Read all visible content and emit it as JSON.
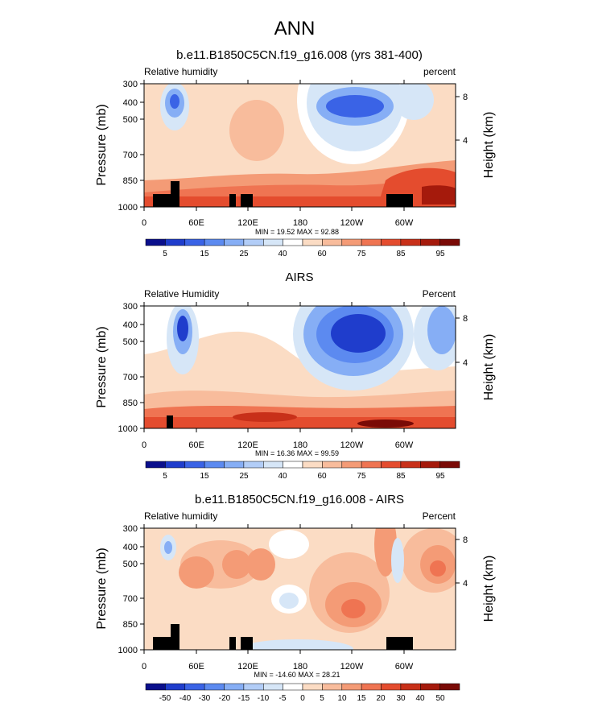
{
  "figure": {
    "title": "ANN"
  },
  "colors": [
    "#0a0f8c",
    "#1f3dcc",
    "#3a63e6",
    "#5c8af0",
    "#86aef5",
    "#b2cdf7",
    "#d6e6f7",
    "#ffffff",
    "#fbdcc4",
    "#f8bc9c",
    "#f49b76",
    "#ef7452",
    "#e44c2e",
    "#c83019",
    "#a51a0c",
    "#7a0a06"
  ],
  "chart_data": [
    {
      "type": "heatmap",
      "title": "b.e11.B1850C5CN.f19_g16.008 (yrs 381-400)",
      "left_label": "Relative humidity",
      "right_label": "percent",
      "ylabel": "Pressure (mb)",
      "ylabel_right": "Height (km)",
      "x_tick_labels": [
        "0",
        "60E",
        "120E",
        "180",
        "120W",
        "60W"
      ],
      "y_tick_labels": [
        "300",
        "400",
        "500",
        "700",
        "850",
        "1000"
      ],
      "right_tick_labels": [
        "8",
        "4"
      ],
      "xlim": [
        0,
        360
      ],
      "ylim": [
        1000,
        300
      ],
      "y_scale": "log",
      "stats": "MIN =  19.52   MAX =  92.88",
      "min": 19.52,
      "max": 92.88,
      "levels": [
        5,
        10,
        15,
        20,
        25,
        30,
        40,
        50,
        60,
        70,
        75,
        80,
        85,
        90,
        95
      ],
      "colorbar_labels": [
        "5",
        "15",
        "25",
        "40",
        "60",
        "75",
        "85",
        "95"
      ],
      "land_mask": true
    },
    {
      "type": "heatmap",
      "title": "AIRS",
      "left_label": "Relative Humidity",
      "right_label": "Percent",
      "ylabel": "Pressure (mb)",
      "ylabel_right": "Height (km)",
      "x_tick_labels": [
        "0",
        "60E",
        "120E",
        "180",
        "120W",
        "60W"
      ],
      "y_tick_labels": [
        "300",
        "400",
        "500",
        "700",
        "850",
        "1000"
      ],
      "right_tick_labels": [
        "8",
        "4"
      ],
      "xlim": [
        0,
        360
      ],
      "ylim": [
        1000,
        300
      ],
      "y_scale": "log",
      "stats": "MIN =  16.36   MAX =  99.59",
      "min": 16.36,
      "max": 99.59,
      "levels": [
        5,
        10,
        15,
        20,
        25,
        30,
        40,
        50,
        60,
        70,
        75,
        80,
        85,
        90,
        95
      ],
      "colorbar_labels": [
        "5",
        "15",
        "25",
        "40",
        "60",
        "75",
        "85",
        "95"
      ],
      "land_mask": true
    },
    {
      "type": "heatmap",
      "title": "b.e11.B1850C5CN.f19_g16.008 - AIRS",
      "left_label": "Relative humidity",
      "right_label": "Percent",
      "ylabel": "Pressure (mb)",
      "ylabel_right": "Height (km)",
      "x_tick_labels": [
        "0",
        "60E",
        "120E",
        "180",
        "120W",
        "60W"
      ],
      "y_tick_labels": [
        "300",
        "400",
        "500",
        "700",
        "850",
        "1000"
      ],
      "right_tick_labels": [
        "8",
        "4"
      ],
      "xlim": [
        0,
        360
      ],
      "ylim": [
        1000,
        300
      ],
      "y_scale": "log",
      "stats": "MIN = -14.60   MAX =  28.21",
      "min": -14.6,
      "max": 28.21,
      "levels": [
        -50,
        -40,
        -30,
        -20,
        -15,
        -10,
        -5,
        0,
        5,
        10,
        15,
        20,
        30,
        40,
        50
      ],
      "colorbar_labels": [
        "-50",
        "-40",
        "-30",
        "-20",
        "-15",
        "-10",
        "-5",
        "0",
        "5",
        "10",
        "15",
        "20",
        "30",
        "40",
        "50"
      ],
      "land_mask": true
    }
  ]
}
